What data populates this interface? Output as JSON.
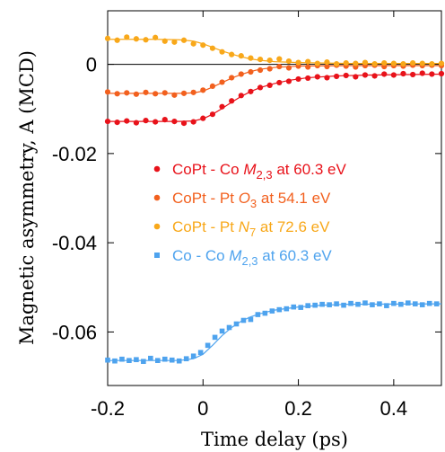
{
  "chart_data": {
    "type": "scatter",
    "xlabel": "Time delay (ps)",
    "ylabel": "Magnetic asymmetry, A (MCD)",
    "xlim": [
      -0.2,
      0.5
    ],
    "ylim": [
      -0.072,
      0.012
    ],
    "x_ticks": [
      {
        "value": -0.2,
        "label": "-0.2"
      },
      {
        "value": 0,
        "label": "0"
      },
      {
        "value": 0.2,
        "label": "0.2"
      },
      {
        "value": 0.4,
        "label": "0.4"
      }
    ],
    "y_ticks": [
      {
        "value": 0,
        "label": "0"
      },
      {
        "value": -0.02,
        "label": "-0.02"
      },
      {
        "value": -0.04,
        "label": "-0.04"
      },
      {
        "value": -0.06,
        "label": "-0.06"
      }
    ],
    "zero_line": true,
    "grid": false,
    "legend_position": "center",
    "series": [
      {
        "name": "CoPt - Co M2,3 at 60.3 eV",
        "legend_parts": [
          "CoPt - Co ",
          "M",
          "2,3",
          " at 60.3 eV"
        ],
        "color": "#e8121a",
        "marker": "circle",
        "x": [
          -0.2,
          -0.18,
          -0.16,
          -0.14,
          -0.12,
          -0.1,
          -0.08,
          -0.06,
          -0.04,
          -0.02,
          0,
          0.02,
          0.04,
          0.06,
          0.08,
          0.1,
          0.12,
          0.14,
          0.16,
          0.18,
          0.2,
          0.22,
          0.24,
          0.26,
          0.28,
          0.3,
          0.32,
          0.34,
          0.36,
          0.38,
          0.4,
          0.42,
          0.44,
          0.46,
          0.48,
          0.5
        ],
        "y": [
          -0.0128,
          -0.013,
          -0.0127,
          -0.0131,
          -0.0126,
          -0.0129,
          -0.0124,
          -0.0128,
          -0.0132,
          -0.0129,
          -0.0121,
          -0.0112,
          -0.0095,
          -0.0082,
          -0.007,
          -0.0061,
          -0.0052,
          -0.0047,
          -0.0041,
          -0.0038,
          -0.0033,
          -0.0031,
          -0.0028,
          -0.003,
          -0.0027,
          -0.0025,
          -0.0028,
          -0.0024,
          -0.0026,
          -0.0022,
          -0.0024,
          -0.0021,
          -0.0023,
          -0.002,
          -0.0022,
          -0.0021
        ],
        "fit_x": [
          -0.2,
          -0.05,
          -0.02,
          0,
          0.02,
          0.04,
          0.06,
          0.08,
          0.1,
          0.12,
          0.15,
          0.18,
          0.22,
          0.28,
          0.35,
          0.5
        ],
        "fit_y": [
          -0.0128,
          -0.0128,
          -0.0127,
          -0.0122,
          -0.0112,
          -0.0099,
          -0.0085,
          -0.0072,
          -0.0061,
          -0.0052,
          -0.0043,
          -0.0036,
          -0.003,
          -0.0026,
          -0.0024,
          -0.0022
        ]
      },
      {
        "name": "CoPt - Pt O3 at 54.1 eV",
        "legend_parts": [
          "CoPt - Pt ",
          "O",
          "3",
          " at 54.1 eV"
        ],
        "color": "#f2601e",
        "marker": "circle",
        "x": [
          -0.2,
          -0.18,
          -0.16,
          -0.14,
          -0.12,
          -0.1,
          -0.08,
          -0.06,
          -0.04,
          -0.02,
          0,
          0.02,
          0.04,
          0.06,
          0.08,
          0.1,
          0.12,
          0.14,
          0.16,
          0.18,
          0.2,
          0.22,
          0.24,
          0.26,
          0.28,
          0.3,
          0.32,
          0.34,
          0.36,
          0.38,
          0.4,
          0.42,
          0.44,
          0.46,
          0.48,
          0.5
        ],
        "y": [
          -0.0062,
          -0.0066,
          -0.0064,
          -0.0067,
          -0.0063,
          -0.0066,
          -0.0064,
          -0.0069,
          -0.0065,
          -0.0063,
          -0.0058,
          -0.0049,
          -0.004,
          -0.003,
          -0.0022,
          -0.0017,
          -0.0013,
          -0.001,
          -0.0005,
          -0.0008,
          -0.0004,
          -0.0006,
          -0.0003,
          -0.0005,
          -0.0002,
          -0.0004,
          -0.0006,
          -0.0003,
          -0.0002,
          -0.0005,
          -0.0003,
          -0.0004,
          -0.0002,
          -0.0003,
          -0.0002,
          -0.0003
        ],
        "fit_x": [
          -0.2,
          -0.05,
          -0.02,
          0,
          0.02,
          0.04,
          0.06,
          0.08,
          0.1,
          0.12,
          0.15,
          0.2,
          0.3,
          0.5
        ],
        "fit_y": [
          -0.0065,
          -0.0065,
          -0.0064,
          -0.006,
          -0.0051,
          -0.0041,
          -0.0031,
          -0.0023,
          -0.0016,
          -0.0011,
          -0.0007,
          -0.0004,
          -0.0003,
          -0.0003
        ]
      },
      {
        "name": "CoPt - Pt N7 at 72.6 eV",
        "legend_parts": [
          "CoPt - Pt ",
          "N",
          "7",
          " at 72.6 eV"
        ],
        "color": "#f8a81a",
        "marker": "circle",
        "x": [
          -0.2,
          -0.18,
          -0.16,
          -0.14,
          -0.12,
          -0.1,
          -0.08,
          -0.06,
          -0.04,
          -0.02,
          0,
          0.02,
          0.04,
          0.06,
          0.08,
          0.1,
          0.12,
          0.14,
          0.16,
          0.18,
          0.2,
          0.22,
          0.24,
          0.26,
          0.28,
          0.3,
          0.32,
          0.34,
          0.36,
          0.38,
          0.4,
          0.42,
          0.44,
          0.46,
          0.48,
          0.5
        ],
        "y": [
          0.0058,
          0.0054,
          0.0061,
          0.0057,
          0.0055,
          0.006,
          0.0052,
          0.005,
          0.0054,
          0.0046,
          0.0043,
          0.0036,
          0.0028,
          0.0022,
          0.0019,
          0.0014,
          0.0011,
          0.0009,
          0.0012,
          0.0007,
          0.0004,
          0.0006,
          0.0002,
          0.0005,
          0.0001,
          0.0003,
          0.0002,
          0.0004,
          0.0001,
          0.0003,
          0.0002,
          0.0001,
          0.0003,
          0.0002,
          0.0001,
          0.0002
        ],
        "fit_x": [
          -0.2,
          -0.1,
          -0.05,
          -0.02,
          0,
          0.02,
          0.04,
          0.06,
          0.08,
          0.1,
          0.12,
          0.15,
          0.2,
          0.3,
          0.5
        ],
        "fit_y": [
          0.0056,
          0.0056,
          0.0055,
          0.0052,
          0.0046,
          0.0038,
          0.003,
          0.0023,
          0.0017,
          0.0012,
          0.0009,
          0.0006,
          0.0004,
          0.0002,
          0.0002
        ]
      },
      {
        "name": "Co - Co M2,3 at 60.3 eV",
        "legend_parts": [
          "Co - Co ",
          "M",
          "2,3",
          " at 60.3 eV"
        ],
        "color": "#4ea3ee",
        "marker": "square",
        "x": [
          -0.2,
          -0.185,
          -0.17,
          -0.155,
          -0.14,
          -0.125,
          -0.11,
          -0.095,
          -0.08,
          -0.065,
          -0.05,
          -0.035,
          -0.02,
          -0.005,
          0.01,
          0.025,
          0.04,
          0.055,
          0.07,
          0.085,
          0.1,
          0.115,
          0.13,
          0.145,
          0.16,
          0.175,
          0.19,
          0.205,
          0.22,
          0.235,
          0.25,
          0.265,
          0.28,
          0.295,
          0.31,
          0.325,
          0.34,
          0.355,
          0.37,
          0.385,
          0.4,
          0.415,
          0.43,
          0.445,
          0.46,
          0.475,
          0.49
        ],
        "y": [
          -0.0663,
          -0.0665,
          -0.0661,
          -0.0664,
          -0.0662,
          -0.0666,
          -0.0659,
          -0.0664,
          -0.0661,
          -0.0663,
          -0.0665,
          -0.066,
          -0.0654,
          -0.0646,
          -0.063,
          -0.0612,
          -0.0598,
          -0.059,
          -0.0582,
          -0.0574,
          -0.0572,
          -0.0561,
          -0.0558,
          -0.0553,
          -0.055,
          -0.0548,
          -0.0544,
          -0.0545,
          -0.0541,
          -0.054,
          -0.0538,
          -0.0539,
          -0.0537,
          -0.054,
          -0.0536,
          -0.0538,
          -0.0535,
          -0.0539,
          -0.0537,
          -0.0541,
          -0.0536,
          -0.0538,
          -0.0535,
          -0.0537,
          -0.0539,
          -0.0536,
          -0.0537
        ],
        "fit_x": [
          -0.2,
          -0.05,
          -0.02,
          0,
          0.02,
          0.04,
          0.06,
          0.08,
          0.1,
          0.12,
          0.15,
          0.2,
          0.25,
          0.3,
          0.5
        ],
        "fit_y": [
          -0.0664,
          -0.0664,
          -0.066,
          -0.065,
          -0.063,
          -0.0608,
          -0.059,
          -0.0576,
          -0.0566,
          -0.0559,
          -0.0551,
          -0.0544,
          -0.054,
          -0.0538,
          -0.0537
        ]
      }
    ]
  }
}
